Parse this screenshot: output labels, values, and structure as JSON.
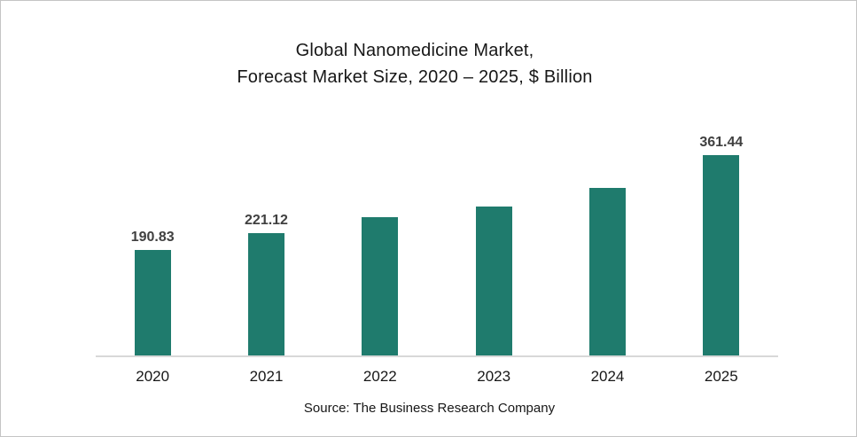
{
  "chart_data": {
    "type": "bar",
    "title_lines": [
      "Global Nanomedicine Market,",
      "Forecast Market Size, 2020 – 2025, $ Billion"
    ],
    "categories": [
      "2020",
      "2021",
      "2022",
      "2023",
      "2024",
      "2025"
    ],
    "values": [
      190.83,
      221.12,
      250.0,
      269.4,
      301.5,
      361.44
    ],
    "data_labels": [
      "190.83",
      "221.12",
      "",
      "",
      "",
      "361.44"
    ],
    "estimated_values": [
      false,
      false,
      true,
      true,
      true,
      false
    ],
    "unit": "$ Billion",
    "xlabel": "",
    "ylabel": "",
    "ylim": [
      0,
      400
    ],
    "grid": false,
    "legend": false,
    "bar_color": "#1f7b6d",
    "data_label_color": "#404040",
    "axis_line_color": "#d8d8d8",
    "source": "Source: The Business Research Company"
  }
}
